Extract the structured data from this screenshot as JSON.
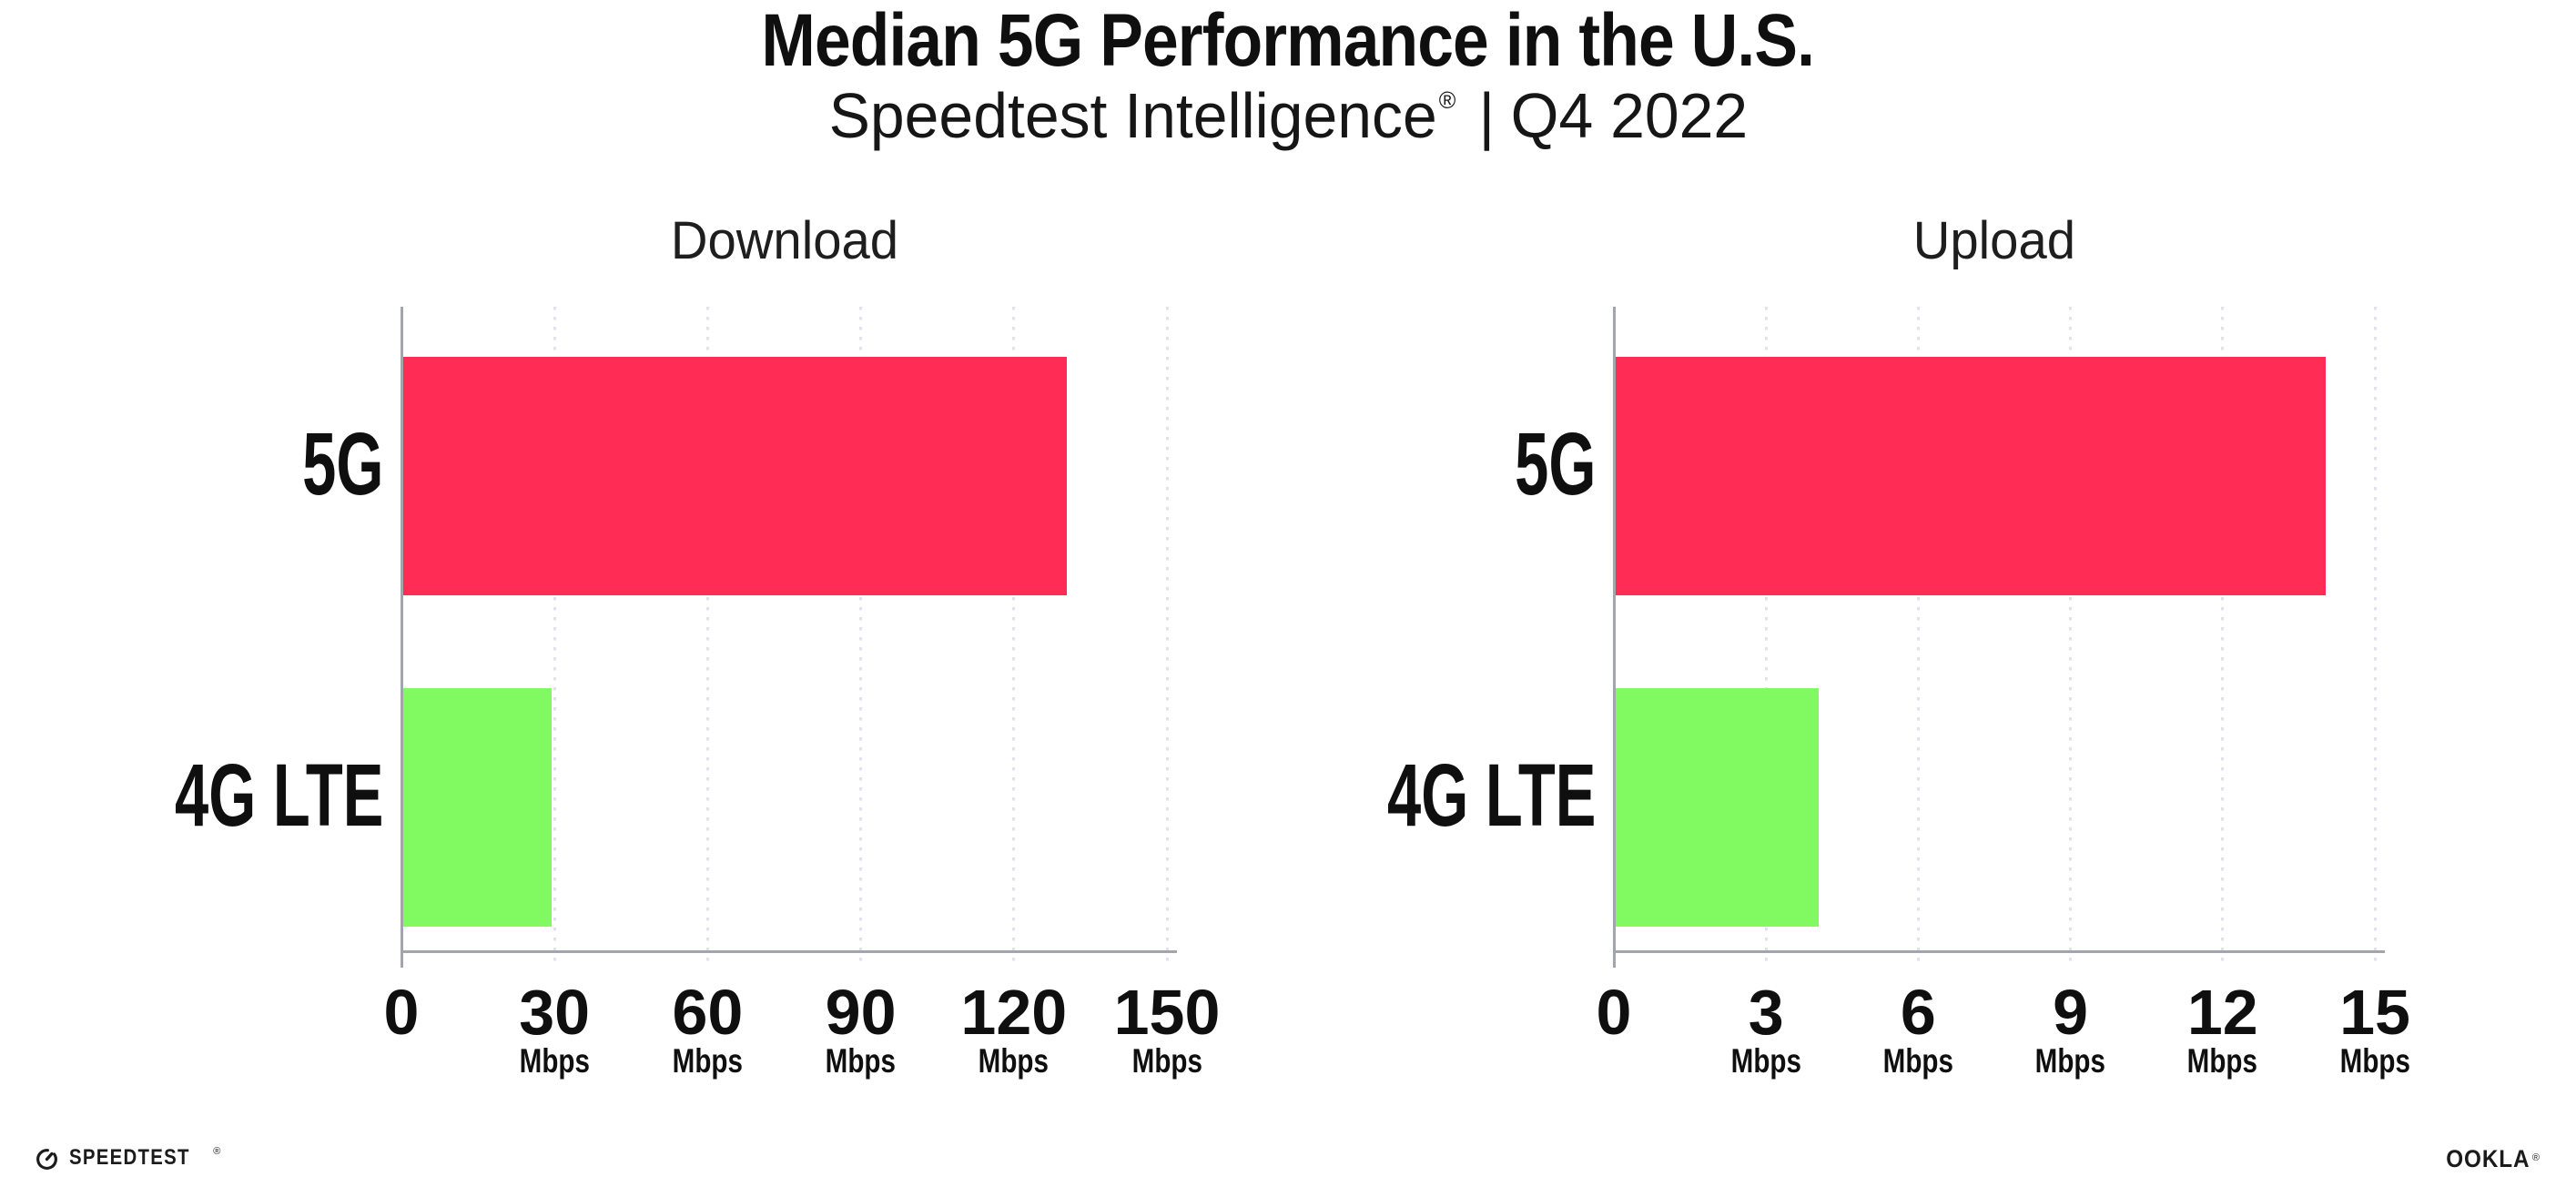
{
  "title": "Median 5G Performance in the U.S.",
  "subtitle": {
    "product": "Speedtest Intelligence",
    "registered": "®",
    "separator": "|",
    "period": "Q4 2022"
  },
  "footer": {
    "speedtest_label": "SPEEDTEST",
    "speedtest_reg": "®",
    "ookla_label": "OOKLA",
    "ookla_reg": "®"
  },
  "colors": {
    "bar_5g": "#FF2D55",
    "bar_4g_lte": "#80FA60",
    "axis": "#A4A4AC",
    "gridline": "#E2E2EE",
    "text": "#0F0F0F"
  },
  "chart_data": [
    {
      "type": "bar",
      "orientation": "horizontal",
      "title": "Download",
      "categories": [
        "5G",
        "4G LTE"
      ],
      "values": [
        130,
        29
      ],
      "unit": "Mbps",
      "xlim": [
        0,
        150
      ],
      "xticks": [
        0,
        30,
        60,
        90,
        120,
        150
      ],
      "tick_unit_label": "Mbps",
      "grid": "vertical-dotted",
      "legend": "none",
      "bar_colors": [
        "#FF2D55",
        "#80FA60"
      ]
    },
    {
      "type": "bar",
      "orientation": "horizontal",
      "title": "Upload",
      "categories": [
        "5G",
        "4G LTE"
      ],
      "values": [
        14,
        4
      ],
      "unit": "Mbps",
      "xlim": [
        0,
        15
      ],
      "xticks": [
        0,
        3,
        6,
        9,
        12,
        15
      ],
      "tick_unit_label": "Mbps",
      "grid": "vertical-dotted",
      "legend": "none",
      "bar_colors": [
        "#FF2D55",
        "#80FA60"
      ]
    }
  ]
}
